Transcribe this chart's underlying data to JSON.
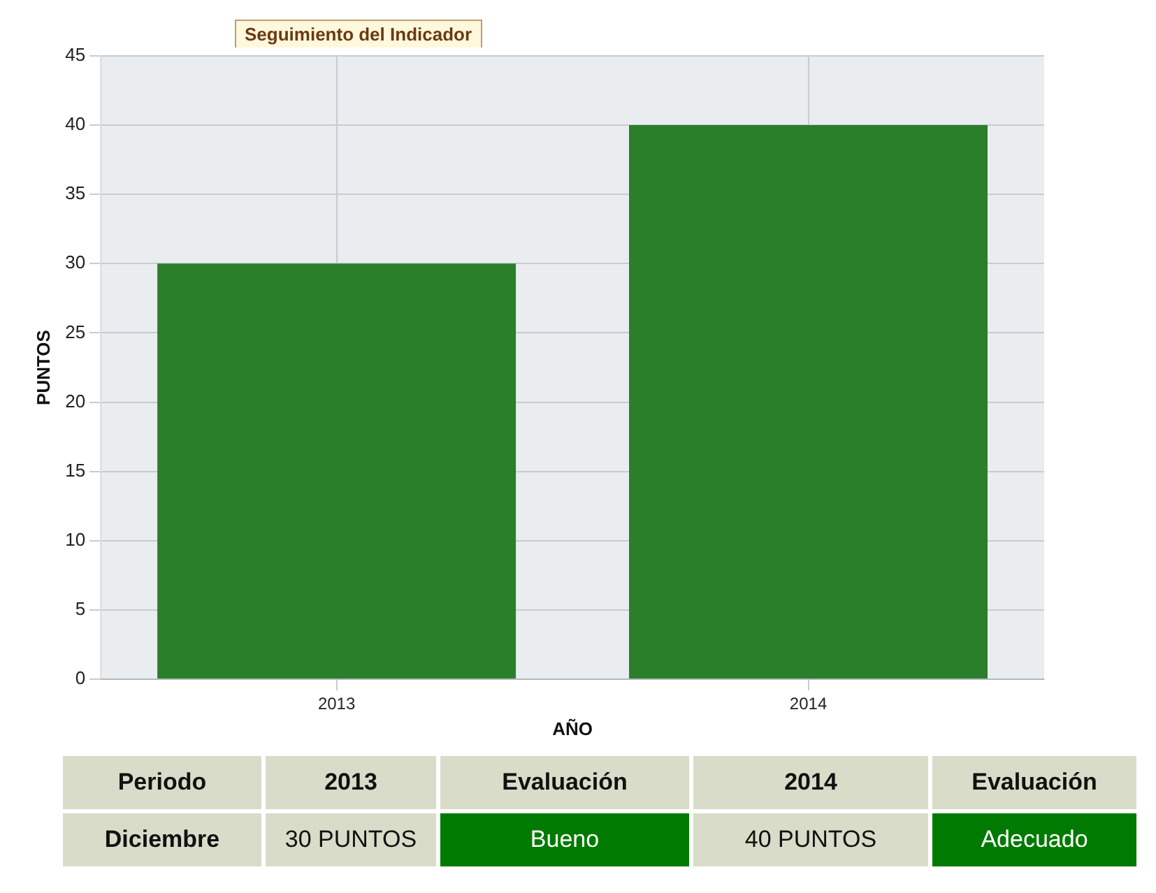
{
  "chart_data": {
    "type": "bar",
    "title": "Seguimiento del Indicador",
    "xlabel": "AÑO",
    "ylabel": "PUNTOS",
    "categories": [
      "2013",
      "2014"
    ],
    "values": [
      30,
      40
    ],
    "value_labels": [
      "30 PUNTOS",
      "40 PUNTOS"
    ],
    "color": "#2a7f2a",
    "ylim": [
      0,
      45
    ],
    "yticks": [
      0,
      5,
      10,
      15,
      20,
      25,
      30,
      35,
      40,
      45
    ],
    "grid": true,
    "annotations": [
      "Periodo",
      "Evaluación",
      "Evaluación",
      "Diciembre",
      "Bueno",
      "Adecuado"
    ]
  }
}
